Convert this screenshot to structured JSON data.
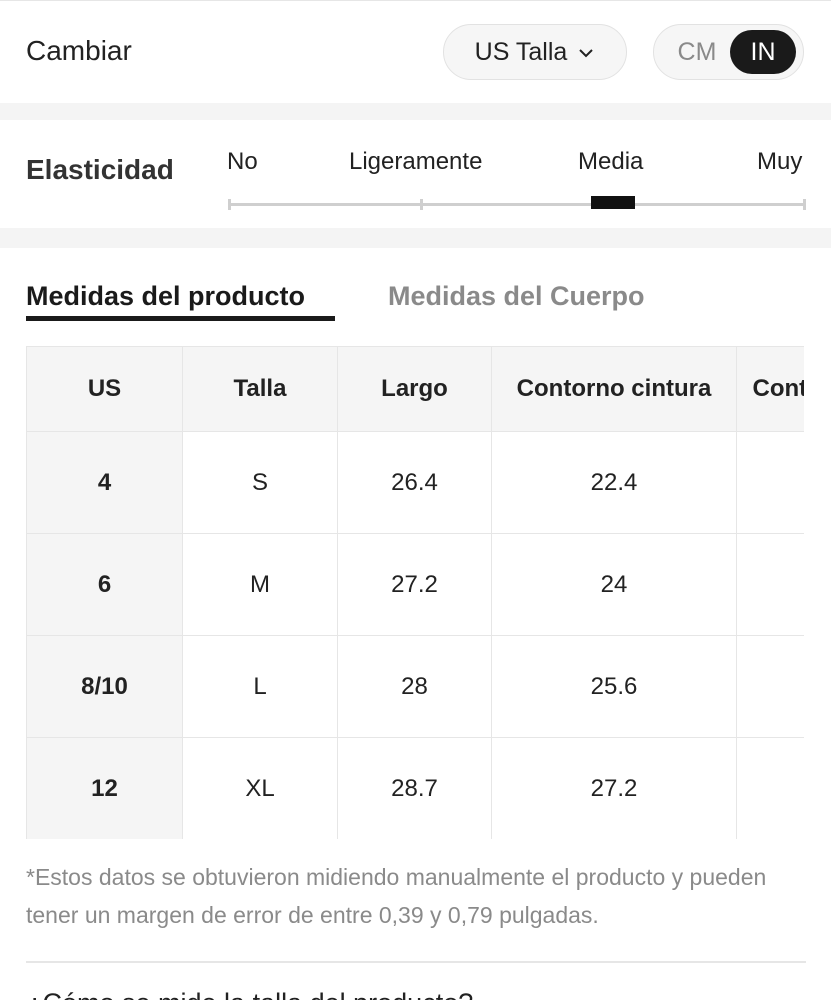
{
  "header": {
    "title": "Cambiar",
    "size_system": "US Talla",
    "units": {
      "cm": "CM",
      "in": "IN",
      "selected": "IN"
    }
  },
  "elasticity": {
    "label": "Elasticidad",
    "levels": [
      "No",
      "Ligeramente",
      "Media",
      "Muy"
    ],
    "selected": "Media"
  },
  "tabs": {
    "product": "Medidas del producto",
    "body": "Medidas del Cuerpo",
    "active": "product"
  },
  "table": {
    "headers": [
      "US",
      "Talla",
      "Largo",
      "Contorno cintura",
      "Contorno cadera"
    ],
    "rows": [
      [
        "4",
        "S",
        "26.4",
        "22.4",
        ""
      ],
      [
        "6",
        "M",
        "27.2",
        "24",
        ""
      ],
      [
        "8/10",
        "L",
        "28",
        "25.6",
        ""
      ],
      [
        "12",
        "XL",
        "28.7",
        "27.2",
        ""
      ]
    ]
  },
  "note": "*Estos datos se obtuvieron midiendo manualmente el producto y pueden tener un margen de error de entre 0,39 y 0,79 pulgadas.",
  "next_section_title": "¿Cómo se mide la talla del producto?"
}
